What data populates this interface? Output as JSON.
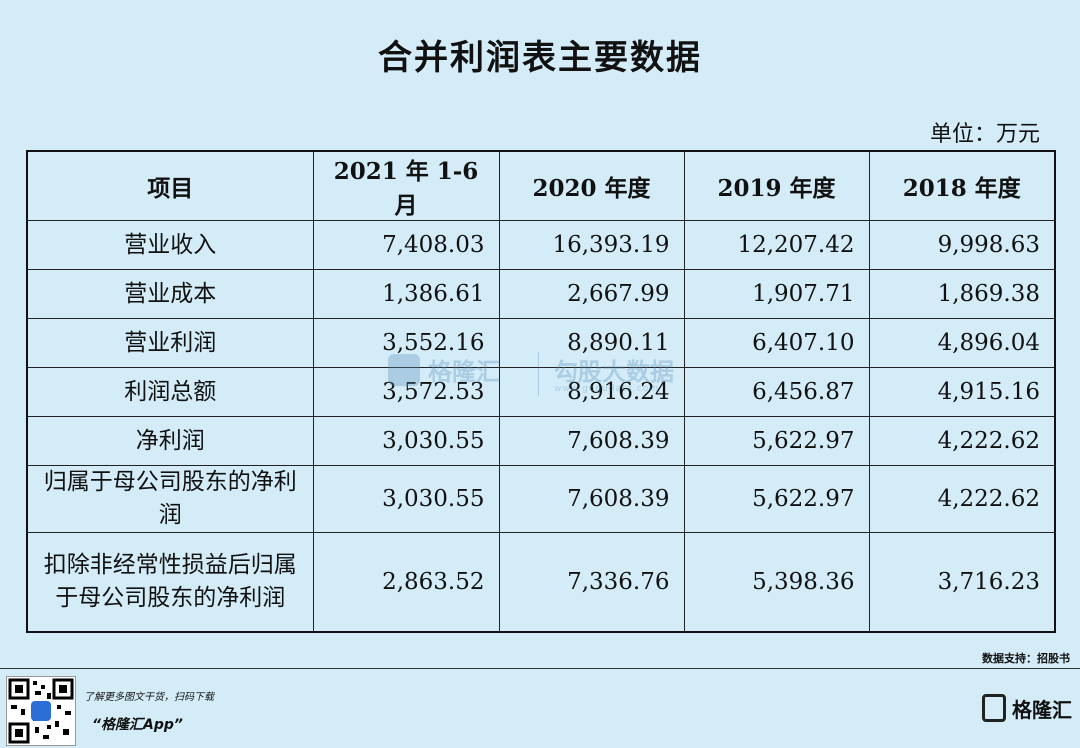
{
  "title": "合并利润表主要数据",
  "unit": "单位：万元",
  "table": {
    "headers": [
      "项目",
      "2021 年 1-6 月",
      "2020 年度",
      "2019 年度",
      "2018 年度"
    ],
    "rows": [
      {
        "label": "营业收入",
        "values": [
          "7,408.03",
          "16,393.19",
          "12,207.42",
          "9,998.63"
        ]
      },
      {
        "label": "营业成本",
        "values": [
          "1,386.61",
          "2,667.99",
          "1,907.71",
          "1,869.38"
        ]
      },
      {
        "label": "营业利润",
        "values": [
          "3,552.16",
          "8,890.11",
          "6,407.10",
          "4,896.04"
        ]
      },
      {
        "label": "利润总额",
        "values": [
          "3,572.53",
          "8,916.24",
          "6,456.87",
          "4,915.16"
        ]
      },
      {
        "label": "净利润",
        "values": [
          "3,030.55",
          "7,608.39",
          "5,622.97",
          "4,222.62"
        ]
      },
      {
        "label": "归属于母公司股东的净利润",
        "values": [
          "3,030.55",
          "7,608.39",
          "5,622.97",
          "4,222.62"
        ]
      },
      {
        "label": "扣除非经常性损益后归属于母公司股东的净利润",
        "values": [
          "2,863.52",
          "7,336.76",
          "5,398.36",
          "3,716.23"
        ]
      }
    ]
  },
  "watermark": {
    "name": "格隆汇",
    "name2": "勾股大数据",
    "url": "www.gogudata.com"
  },
  "source": "数据支持：招股书",
  "footer": {
    "promo_line": "了解更多图文干货，扫码下载",
    "app_name": "“格隆汇App”",
    "brand": "格隆汇"
  }
}
